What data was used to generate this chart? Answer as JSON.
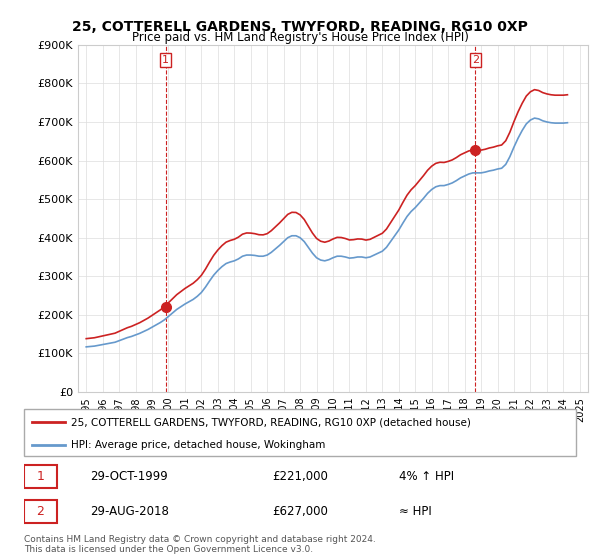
{
  "title": "25, COTTERELL GARDENS, TWYFORD, READING, RG10 0XP",
  "subtitle": "Price paid vs. HM Land Registry's House Price Index (HPI)",
  "ylabel": "",
  "xlabel": "",
  "ylim": [
    0,
    900000
  ],
  "yticks": [
    0,
    100000,
    200000,
    300000,
    400000,
    500000,
    600000,
    700000,
    800000,
    900000
  ],
  "ytick_labels": [
    "£0",
    "£100K",
    "£200K",
    "£300K",
    "£400K",
    "£500K",
    "£600K",
    "£700K",
    "£800K",
    "£900K"
  ],
  "sale1_x": 1999.83,
  "sale1_y": 221000,
  "sale1_label": "1",
  "sale1_date": "29-OCT-1999",
  "sale1_price": "£221,000",
  "sale1_hpi": "4% ↑ HPI",
  "sale2_x": 2018.66,
  "sale2_y": 627000,
  "sale2_label": "2",
  "sale2_date": "29-AUG-2018",
  "sale2_price": "£627,000",
  "sale2_hpi": "≈ HPI",
  "hpi_color": "#6699cc",
  "sale_color": "#cc2222",
  "legend_label1": "25, COTTERELL GARDENS, TWYFORD, READING, RG10 0XP (detached house)",
  "legend_label2": "HPI: Average price, detached house, Wokingham",
  "footer": "Contains HM Land Registry data © Crown copyright and database right 2024.\nThis data is licensed under the Open Government Licence v3.0.",
  "bg_color": "#ffffff",
  "grid_color": "#dddddd",
  "hpi_years": [
    1995.0,
    1995.25,
    1995.5,
    1995.75,
    1996.0,
    1996.25,
    1996.5,
    1996.75,
    1997.0,
    1997.25,
    1997.5,
    1997.75,
    1998.0,
    1998.25,
    1998.5,
    1998.75,
    1999.0,
    1999.25,
    1999.5,
    1999.75,
    2000.0,
    2000.25,
    2000.5,
    2000.75,
    2001.0,
    2001.25,
    2001.5,
    2001.75,
    2002.0,
    2002.25,
    2002.5,
    2002.75,
    2003.0,
    2003.25,
    2003.5,
    2003.75,
    2004.0,
    2004.25,
    2004.5,
    2004.75,
    2005.0,
    2005.25,
    2005.5,
    2005.75,
    2006.0,
    2006.25,
    2006.5,
    2006.75,
    2007.0,
    2007.25,
    2007.5,
    2007.75,
    2008.0,
    2008.25,
    2008.5,
    2008.75,
    2009.0,
    2009.25,
    2009.5,
    2009.75,
    2010.0,
    2010.25,
    2010.5,
    2010.75,
    2011.0,
    2011.25,
    2011.5,
    2011.75,
    2012.0,
    2012.25,
    2012.5,
    2012.75,
    2013.0,
    2013.25,
    2013.5,
    2013.75,
    2014.0,
    2014.25,
    2014.5,
    2014.75,
    2015.0,
    2015.25,
    2015.5,
    2015.75,
    2016.0,
    2016.25,
    2016.5,
    2016.75,
    2017.0,
    2017.25,
    2017.5,
    2017.75,
    2018.0,
    2018.25,
    2018.5,
    2018.75,
    2019.0,
    2019.25,
    2019.5,
    2019.75,
    2020.0,
    2020.25,
    2020.5,
    2020.75,
    2021.0,
    2021.25,
    2021.5,
    2021.75,
    2022.0,
    2022.25,
    2022.5,
    2022.75,
    2023.0,
    2023.25,
    2023.5,
    2023.75,
    2024.0,
    2024.25
  ],
  "hpi_values": [
    117000,
    118000,
    119000,
    121000,
    123000,
    125000,
    127000,
    129000,
    133000,
    137000,
    141000,
    144000,
    148000,
    152000,
    157000,
    162000,
    168000,
    174000,
    180000,
    187000,
    196000,
    205000,
    214000,
    221000,
    228000,
    234000,
    240000,
    248000,
    258000,
    272000,
    288000,
    303000,
    315000,
    325000,
    333000,
    337000,
    340000,
    345000,
    352000,
    355000,
    355000,
    354000,
    352000,
    352000,
    355000,
    362000,
    371000,
    380000,
    390000,
    400000,
    405000,
    405000,
    400000,
    390000,
    375000,
    360000,
    348000,
    342000,
    340000,
    343000,
    348000,
    352000,
    352000,
    350000,
    347000,
    348000,
    350000,
    350000,
    348000,
    350000,
    355000,
    360000,
    365000,
    375000,
    390000,
    405000,
    420000,
    438000,
    455000,
    468000,
    478000,
    490000,
    502000,
    515000,
    525000,
    532000,
    535000,
    535000,
    538000,
    542000,
    548000,
    555000,
    560000,
    565000,
    568000,
    568000,
    568000,
    570000,
    573000,
    575000,
    578000,
    580000,
    590000,
    610000,
    635000,
    658000,
    678000,
    695000,
    705000,
    710000,
    708000,
    703000,
    700000,
    698000,
    697000,
    697000,
    697000,
    698000
  ],
  "sale_years": [
    1999.83,
    2018.66
  ],
  "sale_values": [
    221000,
    627000
  ],
  "xtick_start": 1995,
  "xtick_end": 2025,
  "xlim": [
    1994.5,
    2025.5
  ]
}
